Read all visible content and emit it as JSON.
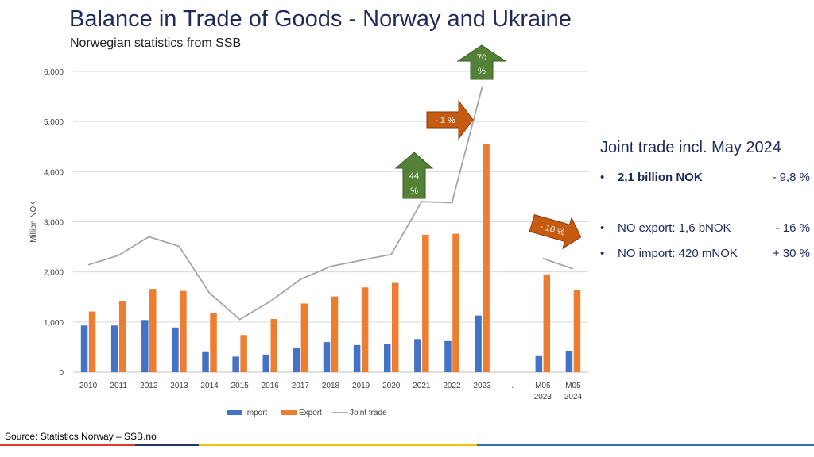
{
  "header": {
    "title": "Balance in Trade of Goods - Norway and Ukraine",
    "subtitle": "Norwegian statistics from SSB"
  },
  "chart_data": {
    "type": "bar",
    "ylabel": "Million NOK",
    "ylim": [
      0,
      6000
    ],
    "yticks": [
      "0",
      "1,000",
      "2,000",
      "3,000",
      "4,000",
      "5,000",
      "6,000"
    ],
    "ytick_values": [
      0,
      1000,
      2000,
      3000,
      4000,
      5000,
      6000
    ],
    "categories": [
      {
        "l1": "2010",
        "l2": ""
      },
      {
        "l1": "2011",
        "l2": ""
      },
      {
        "l1": "2012",
        "l2": ""
      },
      {
        "l1": "2013",
        "l2": ""
      },
      {
        "l1": "2014",
        "l2": ""
      },
      {
        "l1": "2015",
        "l2": ""
      },
      {
        "l1": "2016",
        "l2": ""
      },
      {
        "l1": "2017",
        "l2": ""
      },
      {
        "l1": "2018",
        "l2": ""
      },
      {
        "l1": "2019",
        "l2": ""
      },
      {
        "l1": "2020",
        "l2": ""
      },
      {
        "l1": "2021",
        "l2": ""
      },
      {
        "l1": "2022",
        "l2": ""
      },
      {
        "l1": "2023",
        "l2": ""
      },
      {
        "l1": ".",
        "l2": ""
      },
      {
        "l1": "M05",
        "l2": "2023"
      },
      {
        "l1": "M05",
        "l2": "2024"
      }
    ],
    "series": [
      {
        "name": "Import",
        "type": "bar",
        "color": "#4472c4",
        "values": [
          930,
          930,
          1040,
          890,
          400,
          310,
          350,
          480,
          600,
          540,
          570,
          660,
          620,
          1130,
          null,
          320,
          420
        ]
      },
      {
        "name": "Export",
        "type": "bar",
        "color": "#ed7d31",
        "values": [
          1210,
          1410,
          1660,
          1620,
          1180,
          740,
          1060,
          1370,
          1510,
          1690,
          1780,
          2740,
          2760,
          4560,
          null,
          1950,
          1640
        ]
      },
      {
        "name": "Joint trade",
        "type": "line",
        "color": "#a5a5a5",
        "values": [
          2140,
          2330,
          2700,
          2510,
          1580,
          1050,
          1410,
          1850,
          2110,
          2230,
          2350,
          3400,
          3380,
          5690,
          null,
          2270,
          2060
        ]
      }
    ],
    "annotations": [
      {
        "text": "70 %",
        "kind": "up",
        "color": "#538135"
      },
      {
        "text": "44 %",
        "kind": "up",
        "color": "#538135"
      },
      {
        "text": "- 1 %",
        "kind": "right",
        "color": "#c55a11"
      },
      {
        "text": "- 10 %",
        "kind": "diag",
        "color": "#c55a11"
      }
    ],
    "legend_position": "bottom"
  },
  "summary": {
    "heading": "Joint trade incl. May 2024",
    "items": [
      {
        "text": "2,1 billion NOK",
        "value": "- 9,8 %",
        "bold": true
      },
      {
        "text": "NO export: 1,6 bNOK",
        "value": "- 16 %",
        "bold": false
      },
      {
        "text": "NO import: 420 mNOK",
        "value": "+ 30 %",
        "bold": false
      }
    ]
  },
  "footer": {
    "source": "Source: Statistics Norway – SSB.no",
    "stripe_colors": [
      "#e03c31",
      "#1f3864",
      "#f4c20d",
      "#2e75b6"
    ]
  }
}
